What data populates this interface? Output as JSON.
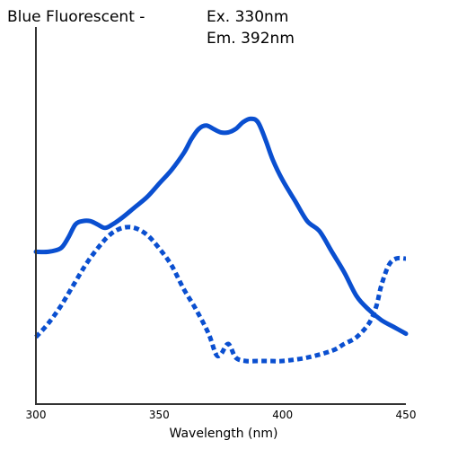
{
  "chart_data": {
    "type": "line",
    "title_left": "Blue Fluorescent -",
    "title_excitation": "Ex. 330nm",
    "title_emission": "Em. 392nm",
    "xlabel": "Wavelength (nm)",
    "ylabel": "",
    "xlim": [
      300,
      450
    ],
    "ylim": [
      0,
      1
    ],
    "x_ticks": [
      "300",
      "350",
      "400",
      "450"
    ],
    "colors": {
      "series": "#0a4fd0",
      "axis": "#333333"
    },
    "series": [
      {
        "style": "solid",
        "points": [
          [
            300,
            0.42
          ],
          [
            305,
            0.42
          ],
          [
            310,
            0.43
          ],
          [
            313,
            0.46
          ],
          [
            316,
            0.5
          ],
          [
            319,
            0.51
          ],
          [
            322,
            0.51
          ],
          [
            325,
            0.5
          ],
          [
            328,
            0.49
          ],
          [
            331,
            0.5
          ],
          [
            335,
            0.52
          ],
          [
            340,
            0.55
          ],
          [
            345,
            0.58
          ],
          [
            350,
            0.62
          ],
          [
            355,
            0.66
          ],
          [
            360,
            0.71
          ],
          [
            363,
            0.75
          ],
          [
            366,
            0.78
          ],
          [
            369,
            0.79
          ],
          [
            372,
            0.78
          ],
          [
            375,
            0.77
          ],
          [
            378,
            0.77
          ],
          [
            381,
            0.78
          ],
          [
            384,
            0.8
          ],
          [
            387,
            0.81
          ],
          [
            390,
            0.8
          ],
          [
            393,
            0.75
          ],
          [
            396,
            0.69
          ],
          [
            400,
            0.63
          ],
          [
            405,
            0.57
          ],
          [
            410,
            0.51
          ],
          [
            415,
            0.48
          ],
          [
            420,
            0.42
          ],
          [
            425,
            0.36
          ],
          [
            430,
            0.29
          ],
          [
            435,
            0.25
          ],
          [
            440,
            0.22
          ],
          [
            445,
            0.2
          ],
          [
            450,
            0.18
          ]
        ]
      },
      {
        "style": "dotted",
        "points": [
          [
            300,
            0.17
          ],
          [
            305,
            0.21
          ],
          [
            310,
            0.26
          ],
          [
            315,
            0.32
          ],
          [
            320,
            0.38
          ],
          [
            325,
            0.43
          ],
          [
            330,
            0.47
          ],
          [
            335,
            0.49
          ],
          [
            340,
            0.49
          ],
          [
            345,
            0.47
          ],
          [
            350,
            0.43
          ],
          [
            355,
            0.38
          ],
          [
            360,
            0.31
          ],
          [
            365,
            0.25
          ],
          [
            370,
            0.18
          ],
          [
            373,
            0.12
          ],
          [
            375,
            0.12
          ],
          [
            378,
            0.15
          ],
          [
            381,
            0.11
          ],
          [
            385,
            0.1
          ],
          [
            390,
            0.1
          ],
          [
            395,
            0.1
          ],
          [
            400,
            0.1
          ],
          [
            410,
            0.11
          ],
          [
            420,
            0.13
          ],
          [
            425,
            0.15
          ],
          [
            430,
            0.17
          ],
          [
            435,
            0.21
          ],
          [
            438,
            0.26
          ],
          [
            440,
            0.32
          ],
          [
            443,
            0.38
          ],
          [
            446,
            0.4
          ],
          [
            450,
            0.4
          ]
        ]
      }
    ]
  }
}
